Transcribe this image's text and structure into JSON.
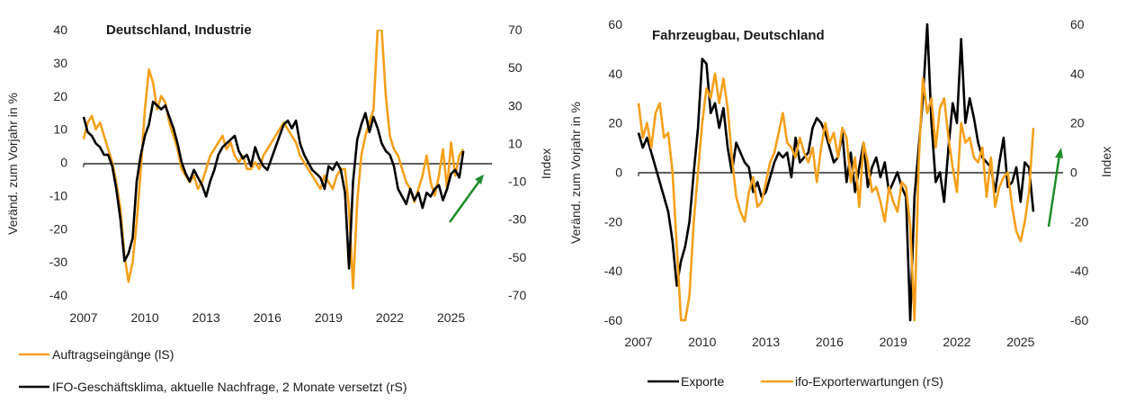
{
  "chart_data": [
    {
      "type": "line",
      "title": "Deutschland, Industrie",
      "ylabel": "Veränd. zum Vorjahr in %",
      "y2label": "Index",
      "ylim": [
        -40,
        40
      ],
      "y2lim": [
        -70,
        70
      ],
      "yticks": [
        40,
        30,
        20,
        10,
        0,
        -10,
        -20,
        -30,
        -40
      ],
      "y2ticks": [
        70,
        50,
        30,
        10,
        -10,
        -30,
        -50,
        -70
      ],
      "xticks": [
        "2007",
        "2010",
        "2013",
        "2016",
        "2019",
        "2022",
        "2025"
      ],
      "xlim": [
        2007,
        2027
      ],
      "legend_position": "bottom-left",
      "annotation": "green upward arrow indicating recovery",
      "series": [
        {
          "name": "Auftragseingänge (lS)",
          "axis": "left",
          "color": "#f5a01a",
          "x": [
            2007.0,
            2007.2,
            2007.4,
            2007.6,
            2007.8,
            2008.0,
            2008.2,
            2008.4,
            2008.6,
            2008.8,
            2009.0,
            2009.2,
            2009.4,
            2009.6,
            2009.8,
            2010.0,
            2010.2,
            2010.4,
            2010.6,
            2010.8,
            2011.0,
            2011.2,
            2011.4,
            2011.6,
            2011.8,
            2012.0,
            2012.2,
            2012.4,
            2012.6,
            2012.8,
            2013.0,
            2013.2,
            2013.4,
            2013.6,
            2013.8,
            2014.0,
            2014.2,
            2014.4,
            2014.6,
            2014.8,
            2015.0,
            2015.2,
            2015.4,
            2015.6,
            2015.8,
            2016.0,
            2016.2,
            2016.4,
            2016.6,
            2016.8,
            2017.0,
            2017.2,
            2017.4,
            2017.6,
            2017.8,
            2018.0,
            2018.2,
            2018.4,
            2018.6,
            2018.8,
            2019.0,
            2019.2,
            2019.4,
            2019.6,
            2019.8,
            2020.0,
            2020.2,
            2020.4,
            2020.6,
            2020.8,
            2021.0,
            2021.2,
            2021.4,
            2021.6,
            2021.8,
            2022.0,
            2022.2,
            2022.4,
            2022.6,
            2022.8,
            2023.0,
            2023.2,
            2023.4,
            2023.6,
            2023.8,
            2024.0,
            2024.2,
            2024.4,
            2024.6,
            2024.8,
            2025.0,
            2025.2,
            2025.4,
            2025.6
          ],
          "y": [
            7,
            12,
            14,
            10,
            12,
            8,
            4,
            0,
            -6,
            -14,
            -28,
            -36,
            -30,
            -18,
            -2,
            16,
            28,
            24,
            16,
            20,
            18,
            12,
            8,
            4,
            -2,
            -4,
            -6,
            -4,
            -8,
            -6,
            -2,
            2,
            4,
            6,
            8,
            4,
            6,
            2,
            0,
            2,
            -2,
            -2,
            0,
            -2,
            2,
            4,
            6,
            8,
            10,
            12,
            10,
            8,
            6,
            2,
            0,
            -2,
            -4,
            -6,
            -8,
            -4,
            -6,
            -8,
            -4,
            -2,
            -2,
            -14,
            -38,
            -12,
            2,
            8,
            12,
            16,
            40,
            40,
            20,
            8,
            4,
            2,
            -2,
            -6,
            -8,
            -12,
            -8,
            -4,
            2,
            -6,
            -10,
            -4,
            4,
            -8,
            6,
            -4,
            2,
            4
          ]
        },
        {
          "name": "IFO-Geschäftsklima, aktuelle Nachfrage, 2 Monate versetzt (rS)",
          "axis": "right",
          "color": "#000000",
          "x": [
            2007.0,
            2007.2,
            2007.4,
            2007.6,
            2007.8,
            2008.0,
            2008.2,
            2008.4,
            2008.6,
            2008.8,
            2009.0,
            2009.2,
            2009.4,
            2009.6,
            2009.8,
            2010.0,
            2010.2,
            2010.4,
            2010.6,
            2010.8,
            2011.0,
            2011.2,
            2011.4,
            2011.6,
            2011.8,
            2012.0,
            2012.2,
            2012.4,
            2012.6,
            2012.8,
            2013.0,
            2013.2,
            2013.4,
            2013.6,
            2013.8,
            2014.0,
            2014.2,
            2014.4,
            2014.6,
            2014.8,
            2015.0,
            2015.2,
            2015.4,
            2015.6,
            2015.8,
            2016.0,
            2016.2,
            2016.4,
            2016.6,
            2016.8,
            2017.0,
            2017.2,
            2017.4,
            2017.6,
            2017.8,
            2018.0,
            2018.2,
            2018.4,
            2018.6,
            2018.8,
            2019.0,
            2019.2,
            2019.4,
            2019.6,
            2019.8,
            2020.0,
            2020.2,
            2020.4,
            2020.6,
            2020.8,
            2021.0,
            2021.2,
            2021.4,
            2021.6,
            2021.8,
            2022.0,
            2022.2,
            2022.4,
            2022.6,
            2022.8,
            2023.0,
            2023.2,
            2023.4,
            2023.6,
            2023.8,
            2024.0,
            2024.2,
            2024.4,
            2024.6,
            2024.8,
            2025.0,
            2025.2,
            2025.4,
            2025.6
          ],
          "y": [
            24,
            16,
            14,
            10,
            8,
            4,
            4,
            -2,
            -14,
            -30,
            -52,
            -48,
            -40,
            -10,
            4,
            14,
            20,
            32,
            30,
            28,
            30,
            24,
            18,
            10,
            0,
            -6,
            -10,
            -4,
            -8,
            -12,
            -18,
            -10,
            -4,
            4,
            8,
            10,
            12,
            14,
            6,
            2,
            4,
            -2,
            8,
            2,
            -2,
            -4,
            2,
            8,
            14,
            20,
            22,
            18,
            22,
            10,
            4,
            0,
            -4,
            -6,
            -8,
            -14,
            -2,
            -4,
            0,
            -4,
            -16,
            -56,
            -10,
            12,
            20,
            26,
            16,
            24,
            18,
            10,
            6,
            4,
            -2,
            -14,
            -18,
            -22,
            -14,
            -20,
            -16,
            -24,
            -16,
            -18,
            -14,
            -12,
            -20,
            -14,
            -6,
            -4,
            -8,
            6
          ]
        }
      ]
    },
    {
      "type": "line",
      "title": "Fahrzeugbau, Deutschland",
      "ylabel": "Veränd. zum Vorjahr in %",
      "y2label": "Index",
      "ylim": [
        -60,
        60
      ],
      "y2lim": [
        -60,
        60
      ],
      "yticks": [
        60,
        40,
        20,
        0,
        -20,
        -40,
        -60
      ],
      "y2ticks": [
        60,
        40,
        20,
        0,
        -20,
        -40,
        -60
      ],
      "xticks": [
        "2007",
        "2010",
        "2013",
        "2016",
        "2019",
        "2022",
        "2025"
      ],
      "xlim": [
        2007,
        2027
      ],
      "legend_position": "bottom-center",
      "annotation": "green upward arrow indicating recovery",
      "series": [
        {
          "name": "Exporte",
          "axis": "left",
          "color": "#000000",
          "x": [
            2007.0,
            2007.2,
            2007.4,
            2007.6,
            2007.8,
            2008.0,
            2008.2,
            2008.4,
            2008.6,
            2008.8,
            2009.0,
            2009.2,
            2009.4,
            2009.6,
            2009.8,
            2010.0,
            2010.2,
            2010.4,
            2010.6,
            2010.8,
            2011.0,
            2011.2,
            2011.4,
            2011.6,
            2011.8,
            2012.0,
            2012.2,
            2012.4,
            2012.6,
            2012.8,
            2013.0,
            2013.2,
            2013.4,
            2013.6,
            2013.8,
            2014.0,
            2014.2,
            2014.4,
            2014.6,
            2014.8,
            2015.0,
            2015.2,
            2015.4,
            2015.6,
            2015.8,
            2016.0,
            2016.2,
            2016.4,
            2016.6,
            2016.8,
            2017.0,
            2017.2,
            2017.4,
            2017.6,
            2017.8,
            2018.0,
            2018.2,
            2018.4,
            2018.6,
            2018.8,
            2019.0,
            2019.2,
            2019.4,
            2019.6,
            2019.8,
            2020.0,
            2020.2,
            2020.4,
            2020.6,
            2020.8,
            2021.0,
            2021.2,
            2021.4,
            2021.6,
            2021.8,
            2022.0,
            2022.2,
            2022.4,
            2022.6,
            2022.8,
            2023.0,
            2023.2,
            2023.4,
            2023.6,
            2023.8,
            2024.0,
            2024.2,
            2024.4,
            2024.6,
            2024.8,
            2025.0,
            2025.2,
            2025.4,
            2025.6
          ],
          "y": [
            16,
            10,
            14,
            8,
            2,
            -4,
            -10,
            -16,
            -28,
            -46,
            -36,
            -30,
            -20,
            0,
            18,
            46,
            44,
            24,
            28,
            18,
            26,
            10,
            0,
            12,
            8,
            4,
            2,
            -8,
            -4,
            -10,
            -8,
            -2,
            4,
            8,
            6,
            8,
            -2,
            14,
            4,
            6,
            8,
            18,
            22,
            20,
            16,
            10,
            4,
            6,
            16,
            -4,
            8,
            -8,
            2,
            12,
            -6,
            2,
            6,
            -2,
            4,
            -8,
            -4,
            0,
            -6,
            -10,
            -60,
            -10,
            10,
            30,
            60,
            20,
            -4,
            0,
            -12,
            10,
            28,
            20,
            54,
            20,
            30,
            22,
            12,
            6,
            4,
            2,
            -8,
            4,
            14,
            -6,
            -4,
            2,
            -12,
            4,
            2,
            -16
          ]
        },
        {
          "name": "ifo-Exporterwartungen (rS)",
          "axis": "right",
          "color": "#f5a01a",
          "x": [
            2007.0,
            2007.2,
            2007.4,
            2007.6,
            2007.8,
            2008.0,
            2008.2,
            2008.4,
            2008.6,
            2008.8,
            2009.0,
            2009.2,
            2009.4,
            2009.6,
            2009.8,
            2010.0,
            2010.2,
            2010.4,
            2010.6,
            2010.8,
            2011.0,
            2011.2,
            2011.4,
            2011.6,
            2011.8,
            2012.0,
            2012.2,
            2012.4,
            2012.6,
            2012.8,
            2013.0,
            2013.2,
            2013.4,
            2013.6,
            2013.8,
            2014.0,
            2014.2,
            2014.4,
            2014.6,
            2014.8,
            2015.0,
            2015.2,
            2015.4,
            2015.6,
            2015.8,
            2016.0,
            2016.2,
            2016.4,
            2016.6,
            2016.8,
            2017.0,
            2017.2,
            2017.4,
            2017.6,
            2017.8,
            2018.0,
            2018.2,
            2018.4,
            2018.6,
            2018.8,
            2019.0,
            2019.2,
            2019.4,
            2019.6,
            2019.8,
            2020.0,
            2020.2,
            2020.4,
            2020.6,
            2020.8,
            2021.0,
            2021.2,
            2021.4,
            2021.6,
            2021.8,
            2022.0,
            2022.2,
            2022.4,
            2022.6,
            2022.8,
            2023.0,
            2023.2,
            2023.4,
            2023.6,
            2023.8,
            2024.0,
            2024.2,
            2024.4,
            2024.6,
            2024.8,
            2025.0,
            2025.2,
            2025.4,
            2025.6
          ],
          "y": [
            28,
            14,
            20,
            10,
            24,
            28,
            14,
            16,
            0,
            -30,
            -60,
            -60,
            -50,
            -20,
            0,
            20,
            34,
            30,
            40,
            28,
            38,
            26,
            6,
            -10,
            -16,
            -20,
            -8,
            -2,
            -14,
            -12,
            -4,
            4,
            8,
            16,
            24,
            12,
            10,
            6,
            14,
            8,
            4,
            10,
            -4,
            10,
            20,
            12,
            16,
            6,
            18,
            14,
            -4,
            6,
            -14,
            12,
            4,
            -8,
            -6,
            -12,
            -20,
            -6,
            -12,
            -16,
            -4,
            -6,
            -22,
            -60,
            4,
            38,
            24,
            30,
            10,
            26,
            30,
            14,
            2,
            -8,
            20,
            12,
            14,
            6,
            4,
            10,
            -10,
            6,
            -14,
            -6,
            -2,
            0,
            -14,
            -24,
            -28,
            -20,
            -8,
            18
          ]
        }
      ]
    }
  ],
  "left_chart": {
    "title": "Deutschland, Industrie",
    "ylabel": "Veränd. zum Vorjahr in %",
    "y2label": "Index",
    "legend": [
      "Auftragseingänge (lS)",
      "IFO-Geschäftsklima, aktuelle Nachfrage, 2 Monate versetzt (rS)"
    ]
  },
  "right_chart": {
    "title": "Fahrzeugbau, Deutschland",
    "ylabel": "Veränd. zum Vorjahr in %",
    "y2label": "Index",
    "legend": [
      "Exporte",
      "ifo-Exporterwartungen (rS)"
    ]
  },
  "colors": {
    "orange": "#f5a01a",
    "black": "#000000",
    "arrow": "#1e8c2a"
  }
}
